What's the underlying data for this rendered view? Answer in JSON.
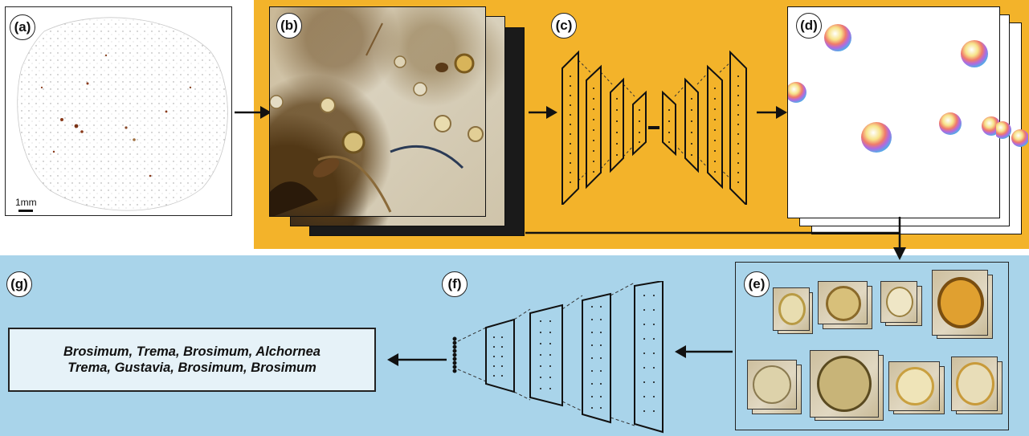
{
  "panels": {
    "a": "(a)",
    "b": "(b)",
    "c": "(c)",
    "d": "(d)",
    "e": "(e)",
    "f": "(f)",
    "g": "(g)"
  },
  "scale_bar": "1mm",
  "classification_result": {
    "line1": "Brosimum, Trema, Brosimum, Alchornea",
    "line2": "Trema, Gustavia, Brosimum, Brosimum"
  },
  "colors": {
    "orange_band": "#f3b32a",
    "blue_band": "#a9d4ea",
    "result_box": "#e6f2f8"
  }
}
